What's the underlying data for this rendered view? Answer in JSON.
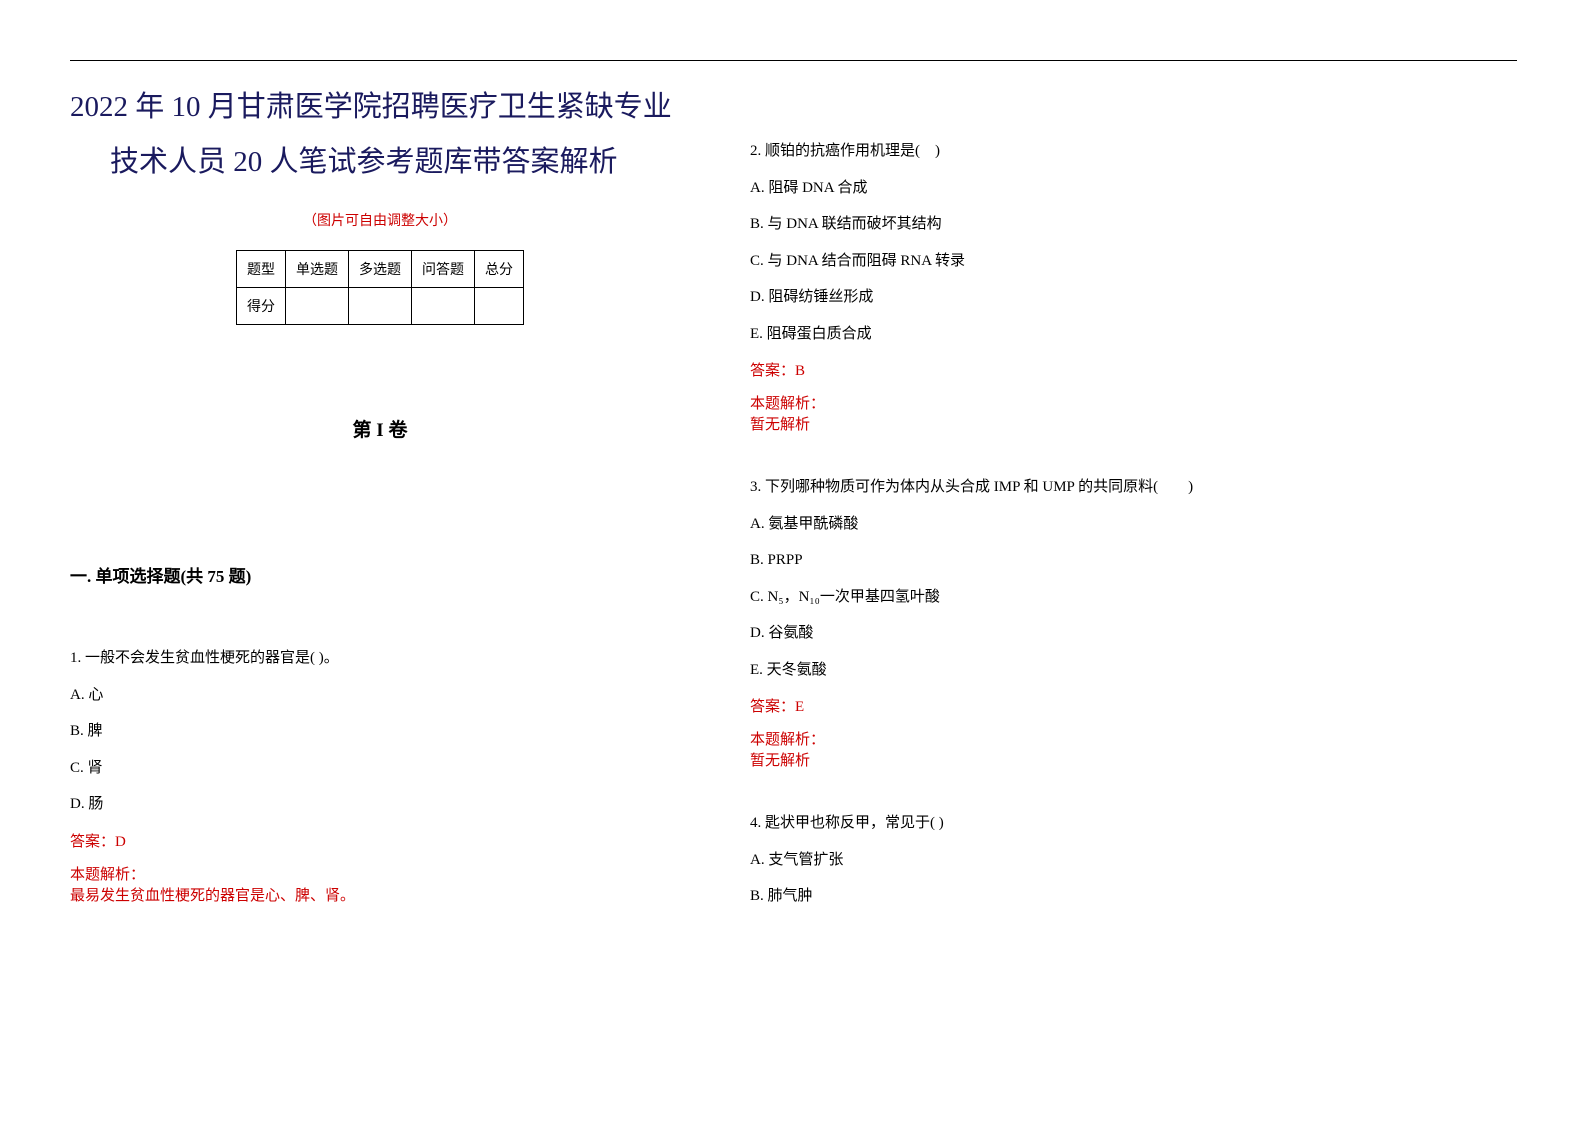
{
  "colors": {
    "text": "#000000",
    "title": "#1a1a5e",
    "accent": "#cc0000",
    "border": "#000000",
    "background": "#ffffff"
  },
  "typography": {
    "title_fontsize": 29,
    "body_fontsize": 15,
    "section_fontsize": 17,
    "note_fontsize": 14,
    "font_family": "SimSun"
  },
  "title_line1": "2022 年 10 月甘肃医学院招聘医疗卫生紧缺专业",
  "title_line2": "技术人员 20 人笔试参考题库带答案解析",
  "img_note": "（图片可自由调整大小）",
  "score_table": {
    "headers": [
      "题型",
      "单选题",
      "多选题",
      "问答题",
      "总分"
    ],
    "row_label": "得分"
  },
  "volume_title": "第 I 卷",
  "section_title": "一. 单项选择题(共 75 题)",
  "answer_prefix": "答案：",
  "explain_label": "本题解析：",
  "no_explain": "暂无解析",
  "questions": [
    {
      "num": "1.",
      "stem": "一般不会发生贫血性梗死的器官是( )。",
      "options": [
        "A. 心",
        "B. 脾",
        "C. 肾",
        "D. 肠"
      ],
      "answer": "D",
      "explain": "最易发生贫血性梗死的器官是心、脾、肾。"
    },
    {
      "num": "2.",
      "stem": "顺铂的抗癌作用机理是(　)",
      "options": [
        "A. 阻碍 DNA 合成",
        "B. 与 DNA 联结而破坏其结构",
        "C. 与 DNA 结合而阻碍 RNA 转录",
        "D. 阻碍纺锤丝形成",
        "E. 阻碍蛋白质合成"
      ],
      "answer": "B",
      "explain": "暂无解析"
    },
    {
      "num": "3.",
      "stem": "下列哪种物质可作为体内从头合成 IMP 和 UMP 的共同原料(　　)",
      "options": [
        "A. 氨基甲酰磷酸",
        "B. PRPP",
        "C. N₅，N₁₀一次甲基四氢叶酸",
        "D. 谷氨酸",
        "E. 天冬氨酸"
      ],
      "answer": "E",
      "explain": "暂无解析"
    },
    {
      "num": "4.",
      "stem": "匙状甲也称反甲，常见于( )",
      "options": [
        "A. 支气管扩张",
        "B. 肺气肿"
      ],
      "answer": "",
      "explain": ""
    }
  ]
}
